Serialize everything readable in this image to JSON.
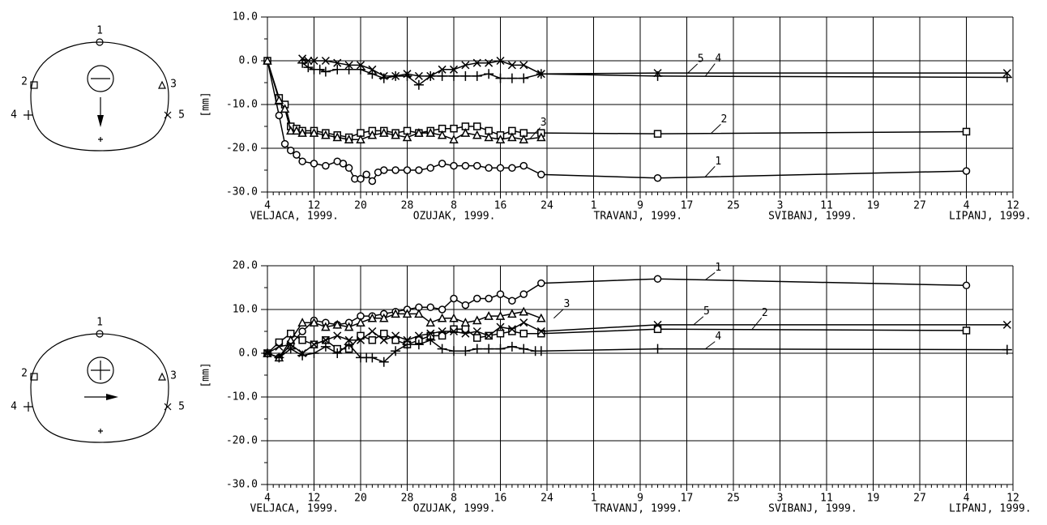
{
  "chart_data": [
    {
      "type": "line",
      "y_label": "[mm]",
      "xlim": [
        0,
        128
      ],
      "ylim": [
        -30,
        10
      ],
      "grid": true,
      "xminor": 1,
      "yminor": 5,
      "xticks": [
        {
          "value": 0,
          "label": "4"
        },
        {
          "value": 8,
          "label": "12"
        },
        {
          "value": 16,
          "label": "20"
        },
        {
          "value": 24,
          "label": "28"
        },
        {
          "value": 32,
          "label": "8"
        },
        {
          "value": 40,
          "label": "16"
        },
        {
          "value": 48,
          "label": "24"
        },
        {
          "value": 56,
          "label": "1"
        },
        {
          "value": 64,
          "label": "9"
        },
        {
          "value": 72,
          "label": "17"
        },
        {
          "value": 80,
          "label": "25"
        },
        {
          "value": 88,
          "label": "3"
        },
        {
          "value": 96,
          "label": "11"
        },
        {
          "value": 104,
          "label": "19"
        },
        {
          "value": 112,
          "label": "27"
        },
        {
          "value": 120,
          "label": "4"
        },
        {
          "value": 128,
          "label": "12"
        }
      ],
      "month_labels": [
        {
          "value": -3,
          "label": "VELJACA, 1999."
        },
        {
          "value": 25,
          "label": "OZUJAK, 1999."
        },
        {
          "value": 56,
          "label": "TRAVANJ, 1999."
        },
        {
          "value": 86,
          "label": "SVIBANJ, 1999."
        },
        {
          "value": 117,
          "label": "LIPANJ, 1999."
        }
      ],
      "yticks": [
        {
          "value": -30,
          "label": "-30.0"
        },
        {
          "value": -20,
          "label": "-20.0"
        },
        {
          "value": -10,
          "label": "-10.0"
        },
        {
          "value": 0,
          "label": "0.0"
        },
        {
          "value": 10,
          "label": "10.0"
        }
      ],
      "series": [
        {
          "name": "1",
          "color": "#000000",
          "marker": "circle",
          "x": [
            0,
            2,
            3,
            4,
            5,
            6,
            8,
            10,
            12,
            13,
            14,
            15,
            16,
            17,
            18,
            19,
            20,
            22,
            24,
            26,
            28,
            30,
            32,
            34,
            36,
            38,
            40,
            42,
            44,
            47,
            67,
            120
          ],
          "values": [
            0,
            -12.5,
            -19,
            -20.5,
            -21.5,
            -23,
            -23.5,
            -24,
            -23,
            -23.5,
            -24.5,
            -27,
            -27,
            -26,
            -27.5,
            -25.5,
            -25,
            -25,
            -25,
            -25,
            -24.5,
            -23.5,
            -24,
            -24,
            -24,
            -24.5,
            -24.5,
            -24.5,
            -24,
            -26,
            -26.8,
            -25.2
          ]
        },
        {
          "name": "2",
          "color": "#000000",
          "marker": "square",
          "x": [
            0,
            2,
            3,
            4,
            5,
            6,
            8,
            10,
            12,
            14,
            16,
            18,
            20,
            22,
            24,
            26,
            28,
            30,
            32,
            34,
            36,
            38,
            40,
            42,
            44,
            47,
            67,
            120
          ],
          "values": [
            0,
            -8.5,
            -10,
            -15,
            -15.5,
            -16,
            -16,
            -16.5,
            -17,
            -17.5,
            -16.5,
            -16,
            -16,
            -16.5,
            -16,
            -16.5,
            -16,
            -15.5,
            -15.5,
            -15,
            -15,
            -16,
            -17,
            -16,
            -16.5,
            -16.5,
            -16.7,
            -16.2
          ]
        },
        {
          "name": "3",
          "color": "#000000",
          "marker": "triangle",
          "x": [
            0,
            2,
            3,
            4,
            5,
            6,
            8,
            10,
            12,
            14,
            16,
            18,
            20,
            22,
            24,
            26,
            28,
            30,
            32,
            34,
            36,
            38,
            40,
            42,
            44,
            47
          ],
          "values": [
            0,
            -9,
            -11,
            -16,
            -16,
            -16.5,
            -16.5,
            -17,
            -17.5,
            -18,
            -18,
            -17,
            -16.5,
            -17,
            -17.5,
            -16.5,
            -16.5,
            -17,
            -18,
            -16.5,
            -17,
            -17.5,
            -18,
            -17.5,
            -18,
            -17.5
          ]
        },
        {
          "name": "4",
          "color": "#000000",
          "marker": "plus",
          "x": [
            6,
            7,
            8,
            9,
            10,
            12,
            14,
            16,
            18,
            20,
            22,
            24,
            26,
            28,
            30,
            32,
            34,
            36,
            38,
            40,
            42,
            44,
            47,
            67,
            127
          ],
          "values": [
            -0.5,
            -1.5,
            -2,
            -2,
            -2.5,
            -2,
            -2,
            -2,
            -3,
            -4,
            -3.5,
            -3.5,
            -5.5,
            -3.5,
            -3.5,
            -3.5,
            -3.5,
            -3.5,
            -3,
            -4,
            -4,
            -4,
            -3,
            -3.5,
            -3.8
          ]
        },
        {
          "name": "5",
          "color": "#000000",
          "marker": "cross",
          "x": [
            6,
            7,
            8,
            10,
            12,
            14,
            16,
            18,
            20,
            22,
            24,
            26,
            28,
            30,
            32,
            34,
            36,
            38,
            40,
            42,
            44,
            47,
            67,
            127
          ],
          "values": [
            0.5,
            0,
            0,
            0,
            -0.5,
            -1,
            -1,
            -2,
            -3.5,
            -3.5,
            -3,
            -3.5,
            -3.5,
            -2,
            -2,
            -1,
            -0.5,
            -0.5,
            0,
            -1,
            -1,
            -3,
            -2.8,
            -2.8
          ]
        }
      ]
    },
    {
      "type": "line",
      "y_label": "[mm]",
      "xlim": [
        0,
        128
      ],
      "ylim": [
        -30,
        20
      ],
      "grid": true,
      "xminor": 1,
      "yminor": 5,
      "xticks": [
        {
          "value": 0,
          "label": "4"
        },
        {
          "value": 8,
          "label": "12"
        },
        {
          "value": 16,
          "label": "20"
        },
        {
          "value": 24,
          "label": "28"
        },
        {
          "value": 32,
          "label": "8"
        },
        {
          "value": 40,
          "label": "16"
        },
        {
          "value": 48,
          "label": "24"
        },
        {
          "value": 56,
          "label": "1"
        },
        {
          "value": 64,
          "label": "9"
        },
        {
          "value": 72,
          "label": "17"
        },
        {
          "value": 80,
          "label": "25"
        },
        {
          "value": 88,
          "label": "3"
        },
        {
          "value": 96,
          "label": "11"
        },
        {
          "value": 104,
          "label": "19"
        },
        {
          "value": 112,
          "label": "27"
        },
        {
          "value": 120,
          "label": "4"
        },
        {
          "value": 128,
          "label": "12"
        }
      ],
      "month_labels": [
        {
          "value": -3,
          "label": "VELJACA, 1999."
        },
        {
          "value": 25,
          "label": "OZUJAK, 1999."
        },
        {
          "value": 56,
          "label": "TRAVANJ, 1999."
        },
        {
          "value": 86,
          "label": "SVIBANJ, 1999."
        },
        {
          "value": 117,
          "label": "LIPANJ, 1999."
        }
      ],
      "yticks": [
        {
          "value": -30,
          "label": "-30.0"
        },
        {
          "value": -20,
          "label": "-20.0"
        },
        {
          "value": -10,
          "label": "-10.0"
        },
        {
          "value": 0,
          "label": "0.0"
        },
        {
          "value": 10,
          "label": "10.0"
        },
        {
          "value": 20,
          "label": "20.0"
        }
      ],
      "series": [
        {
          "name": "1",
          "color": "#000000",
          "marker": "circle",
          "x": [
            0,
            2,
            4,
            6,
            8,
            10,
            12,
            14,
            16,
            18,
            20,
            22,
            24,
            26,
            28,
            30,
            32,
            34,
            36,
            38,
            40,
            42,
            44,
            47,
            67,
            120
          ],
          "values": [
            0,
            -1,
            2,
            5,
            7.5,
            7,
            6.5,
            7,
            8.5,
            8.5,
            9,
            9.5,
            10,
            10.5,
            10.5,
            10,
            12.5,
            11,
            12.5,
            12.5,
            13.5,
            12,
            13.5,
            16,
            17,
            15.5
          ]
        },
        {
          "name": "2",
          "color": "#000000",
          "marker": "square",
          "x": [
            0,
            2,
            4,
            6,
            8,
            10,
            12,
            14,
            16,
            18,
            20,
            22,
            24,
            26,
            28,
            30,
            32,
            34,
            36,
            38,
            40,
            42,
            44,
            47,
            67,
            120
          ],
          "values": [
            0,
            2.5,
            4.5,
            3,
            2,
            3,
            1,
            1,
            4,
            3,
            4.5,
            3,
            2,
            3,
            4,
            4,
            5.5,
            5.5,
            3.5,
            4,
            4.5,
            5,
            4.5,
            4.5,
            5.5,
            5.2
          ]
        },
        {
          "name": "3",
          "color": "#000000",
          "marker": "triangle",
          "x": [
            0,
            2,
            4,
            6,
            8,
            10,
            12,
            14,
            16,
            18,
            20,
            22,
            24,
            26,
            28,
            30,
            32,
            34,
            36,
            38,
            40,
            42,
            44,
            47
          ],
          "values": [
            0,
            -1,
            3,
            7,
            7,
            6,
            6.5,
            6,
            7,
            8,
            8,
            9,
            9,
            9,
            7,
            8,
            8,
            7,
            7.5,
            8.5,
            8.5,
            9,
            9.5,
            8
          ]
        },
        {
          "name": "4",
          "color": "#000000",
          "marker": "plus",
          "x": [
            0,
            2,
            4,
            6,
            8,
            10,
            12,
            14,
            16,
            17,
            18,
            20,
            22,
            24,
            26,
            28,
            30,
            32,
            34,
            36,
            38,
            40,
            42,
            44,
            46,
            47,
            67,
            127
          ],
          "values": [
            0,
            -1,
            1,
            -0.5,
            0,
            1.5,
            0,
            2,
            -1,
            -1,
            -1,
            -2,
            0.5,
            2,
            2,
            3,
            1,
            0.5,
            0.5,
            1,
            1,
            1,
            1.5,
            1,
            0.5,
            0.5,
            1,
            0.8
          ]
        },
        {
          "name": "5",
          "color": "#000000",
          "marker": "cross",
          "x": [
            0,
            2,
            4,
            6,
            8,
            10,
            12,
            14,
            16,
            18,
            20,
            22,
            24,
            26,
            28,
            30,
            32,
            34,
            36,
            38,
            40,
            42,
            44,
            47,
            67,
            127
          ],
          "values": [
            0,
            1.5,
            2,
            0,
            2,
            3,
            4,
            3,
            3,
            5,
            3,
            4,
            3,
            4,
            4.5,
            5,
            5,
            4.5,
            5,
            4,
            6,
            5.5,
            7,
            5,
            6.5,
            6.5
          ]
        }
      ]
    }
  ]
}
